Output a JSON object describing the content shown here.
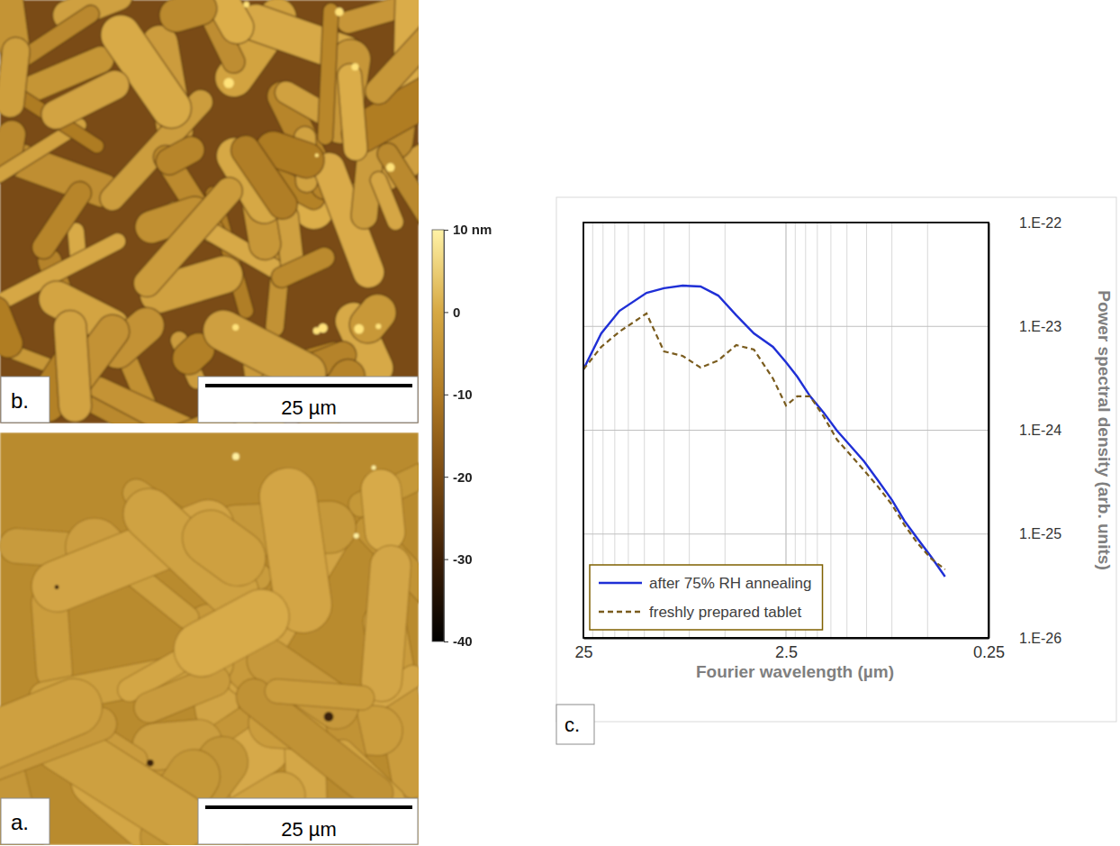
{
  "chart_data": {
    "type": "line",
    "panel": "c.",
    "x_label": "Fourier wavelength (µm)",
    "y_label": "Power spectral density (arb. units)",
    "log": true,
    "grid": true,
    "legend": "lower left",
    "xlim": [
      25,
      0.25
    ],
    "xticks": [
      25,
      2.5,
      0.25
    ],
    "xminor": [
      22.5,
      20,
      17.5,
      15,
      12.5,
      10,
      7.5,
      5,
      2.25,
      2,
      1.75,
      1.5,
      1.25,
      1,
      0.75,
      0.5
    ],
    "ylim": [
      1e-26,
      1e-22
    ],
    "yticks": [
      {
        "value": 1e-26,
        "label": "1.E-26"
      },
      {
        "value": 1e-25,
        "label": "1.E-25"
      },
      {
        "value": 1e-24,
        "label": "1.E-24"
      },
      {
        "value": 1e-23,
        "label": "1.E-23"
      },
      {
        "value": 1e-22,
        "label": "1.E-22"
      }
    ],
    "x": [
      25,
      20.4,
      16.6,
      12.2,
      10,
      8.1,
      6.6,
      5.4,
      4.4,
      3.6,
      2.9,
      2.5,
      2.2,
      1.9,
      1.63,
      1.4,
      1.2,
      1.03,
      0.88,
      0.75,
      0.65,
      0.56,
      0.48,
      0.41
    ],
    "series": [
      {
        "name": "after 75% RH annealing",
        "color": "#1f2fd6",
        "line_style": "solid",
        "values": [
          3.85e-24,
          8.57e-24,
          1.41e-23,
          2.1e-23,
          2.33e-23,
          2.47e-23,
          2.42e-23,
          1.98e-23,
          1.28e-23,
          8.57e-24,
          6.35e-24,
          4.52e-24,
          3.28e-24,
          2.12e-24,
          1.48e-24,
          9.9e-25,
          7.05e-25,
          5.02e-25,
          3.3e-25,
          2.13e-25,
          1.34e-25,
          9e-26,
          6.04e-26,
          3.89e-26
        ]
      },
      {
        "name": "freshly prepared tablet",
        "color": "#7a5c1e",
        "line_style": "dashed",
        "values": [
          3.85e-24,
          6.35e-24,
          8.9e-24,
          1.33e-23,
          5.74e-24,
          5.2e-24,
          4.01e-24,
          4.7e-24,
          6.6e-24,
          5.98e-24,
          3.15e-24,
          1.73e-24,
          2.12e-24,
          2.12e-24,
          1.36e-24,
          8.1e-25,
          5.77e-25,
          4.11e-25,
          2.87e-25,
          1.92e-25,
          1.22e-25,
          8.15e-26,
          5.8e-26,
          4.56e-26
        ]
      }
    ]
  },
  "images": [
    {
      "panel": "b.",
      "scale_bar": "25 µm"
    },
    {
      "panel": "a.",
      "scale_bar": "25 µm"
    }
  ],
  "colorbar": {
    "range": [
      -40,
      10
    ],
    "ticks": [
      {
        "value": 10,
        "label": "10 nm"
      },
      0,
      -10,
      -20,
      -30,
      -40
    ]
  }
}
